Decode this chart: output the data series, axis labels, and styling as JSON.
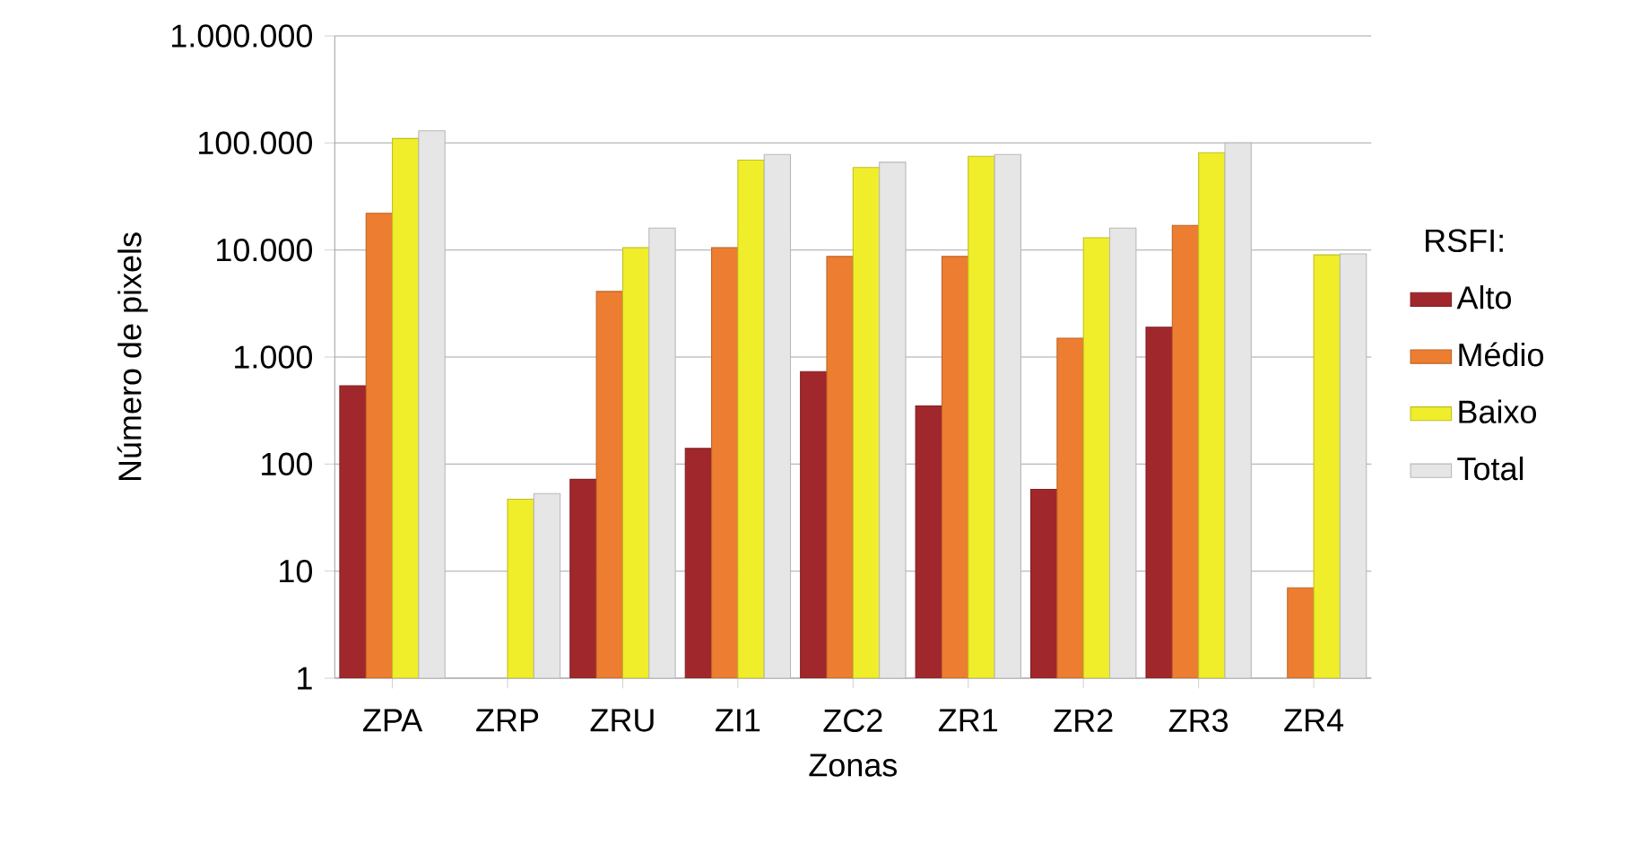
{
  "chart_data": {
    "type": "bar",
    "xlabel": "Zonas",
    "ylabel": "Número de pixels",
    "legend_title": "RSFI:",
    "categories": [
      "ZPA",
      "ZRP",
      "ZRU",
      "ZI1",
      "ZC2",
      "ZR1",
      "ZR2",
      "ZR3",
      "ZR4"
    ],
    "series": [
      {
        "name": "Alto",
        "color": "#a0282c",
        "values": [
          540,
          null,
          72,
          140,
          730,
          350,
          58,
          1900,
          null
        ]
      },
      {
        "name": "Médio",
        "color": "#ed7d31",
        "values": [
          22000,
          null,
          4100,
          10500,
          8700,
          8700,
          1500,
          17000,
          7
        ]
      },
      {
        "name": "Baixo",
        "color": "#f0ee2a",
        "values": [
          110000,
          47,
          10500,
          69000,
          59000,
          75000,
          13000,
          81000,
          9000
        ]
      },
      {
        "name": "Total",
        "color": "#e6e6e6",
        "values": [
          130000,
          53,
          16000,
          78000,
          66000,
          78000,
          16000,
          100000,
          9200
        ]
      }
    ],
    "log": "y",
    "ylim": [
      1,
      1000000
    ],
    "yticks": [
      1,
      10,
      100,
      {
        "value": 1000,
        "label": "1.000"
      },
      {
        "value": 10000,
        "label": "10.000"
      },
      {
        "value": 100000,
        "label": "100.000"
      },
      {
        "value": 1000000,
        "label": "1.000.000"
      }
    ],
    "grid": "y",
    "legend": "right"
  }
}
